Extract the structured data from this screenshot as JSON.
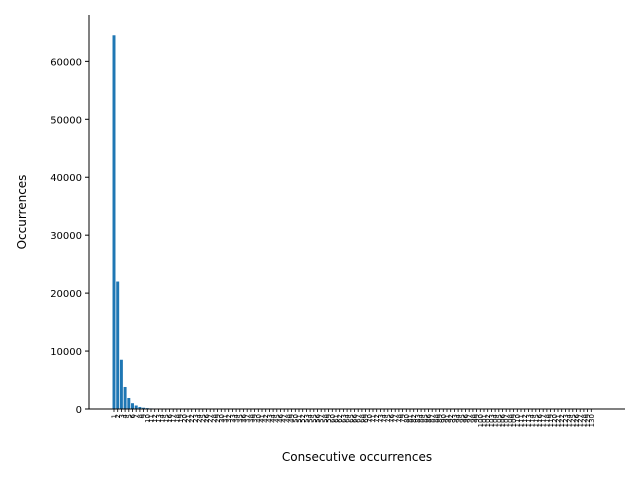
{
  "chart_data": {
    "type": "bar",
    "title": "",
    "xlabel": "Consecutive occurrences",
    "ylabel": "Occurrences",
    "ylim": [
      0,
      68000
    ],
    "yticks": [
      0,
      10000,
      20000,
      30000,
      40000,
      50000,
      60000
    ],
    "grid": false,
    "legend": "none",
    "bar_color": "#1f77b4",
    "categories": [
      "1",
      "2",
      "3",
      "4",
      "5",
      "6",
      "7",
      "8",
      "9",
      "10",
      "11",
      "12",
      "13",
      "14",
      "15",
      "16",
      "17",
      "18",
      "19",
      "20",
      "21",
      "22",
      "23",
      "24",
      "25",
      "26",
      "27",
      "28",
      "29",
      "30",
      "31",
      "32",
      "33",
      "34",
      "35",
      "36",
      "37",
      "38",
      "39",
      "40",
      "41",
      "42",
      "43",
      "44",
      "45",
      "46",
      "47",
      "48",
      "49",
      "50",
      "51",
      "52",
      "53",
      "54",
      "55",
      "56",
      "57",
      "58",
      "59",
      "60",
      "61",
      "62",
      "63",
      "64",
      "65",
      "66",
      "67",
      "68",
      "69",
      "70",
      "71",
      "72",
      "73",
      "74",
      "75",
      "76",
      "77",
      "78",
      "79",
      "80",
      "81",
      "82",
      "83",
      "84",
      "85",
      "86",
      "87",
      "88",
      "89",
      "90",
      "91",
      "92",
      "93",
      "94",
      "95",
      "96",
      "97",
      "98",
      "99",
      "100",
      "101",
      "102",
      "103",
      "104",
      "105",
      "106",
      "107",
      "108",
      "109",
      "110",
      "111",
      "112",
      "113",
      "114",
      "115",
      "116",
      "117",
      "118",
      "119",
      "120",
      "121",
      "122",
      "123",
      "124",
      "125",
      "126",
      "127",
      "128",
      "129",
      "130"
    ],
    "values": [
      64500,
      22000,
      8500,
      3800,
      1900,
      1000,
      600,
      350,
      220,
      150,
      100,
      70,
      50,
      40,
      30,
      25,
      20,
      16,
      14,
      12,
      10,
      9,
      8,
      7,
      6,
      6,
      5,
      5,
      4,
      4,
      4,
      3,
      3,
      3,
      3,
      3,
      2,
      2,
      2,
      2,
      2,
      2,
      2,
      2,
      2,
      2,
      2,
      1,
      1,
      1,
      1,
      1,
      1,
      1,
      1,
      1,
      1,
      1,
      1,
      1,
      1,
      1,
      1,
      1,
      1,
      1,
      1,
      1,
      1,
      1,
      1,
      1,
      1,
      1,
      1,
      1,
      1,
      1,
      1,
      1,
      1,
      1,
      1,
      1,
      1,
      1,
      1,
      1,
      1,
      1,
      1,
      1,
      1,
      1,
      1,
      1,
      1,
      1,
      1,
      1,
      1,
      1,
      1,
      1,
      1,
      1,
      1,
      1,
      1,
      1,
      1,
      1,
      1,
      1,
      1,
      1,
      1,
      1,
      1,
      1,
      1,
      1,
      1,
      1,
      1,
      1,
      1,
      1,
      1,
      1
    ]
  }
}
